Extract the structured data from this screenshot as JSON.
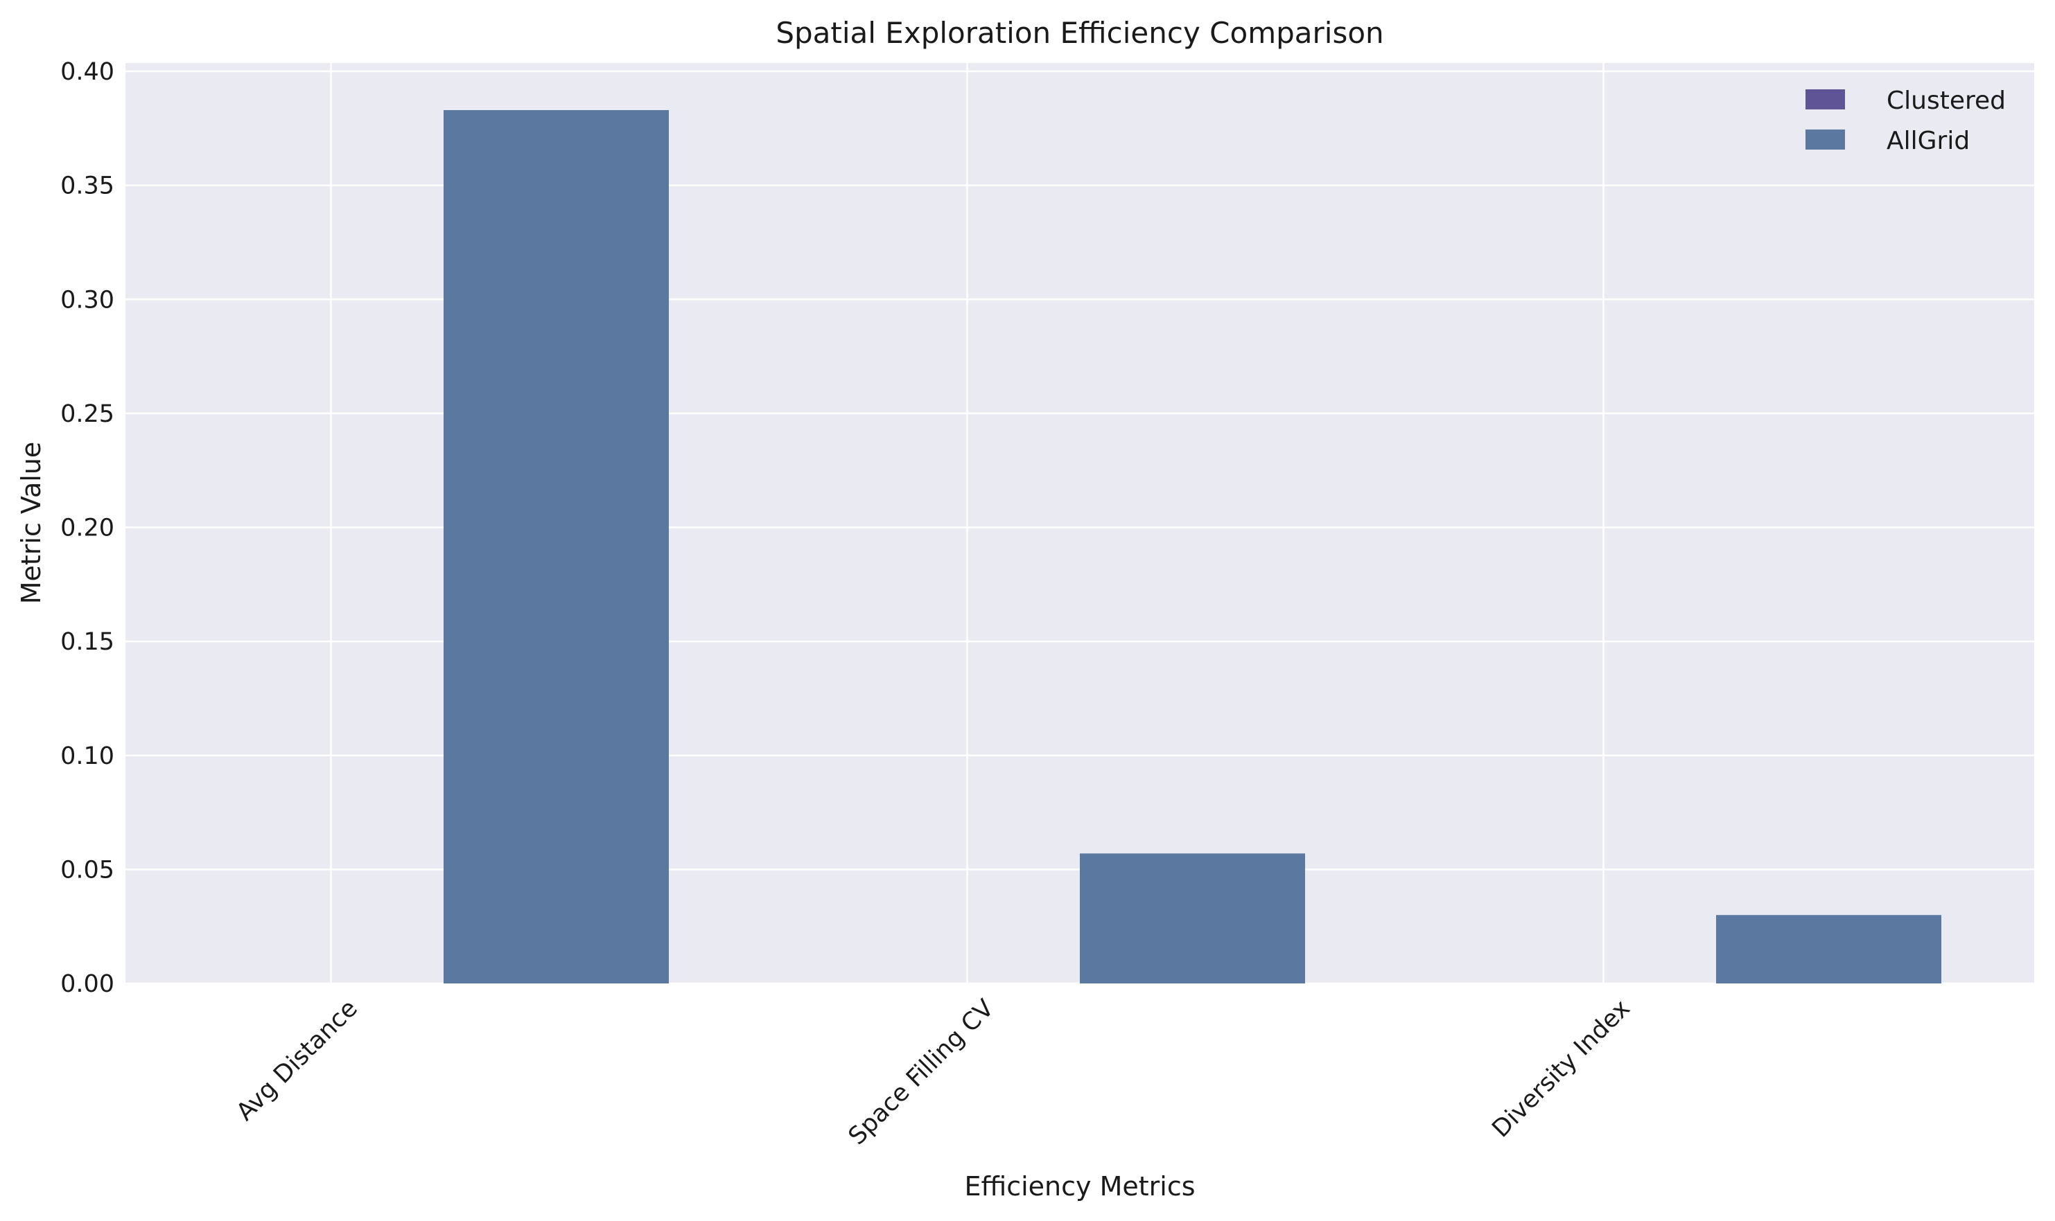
{
  "chart_data": {
    "type": "bar",
    "title": "Spatial Exploration Efficiency Comparison",
    "xlabel": "Efficiency Metrics",
    "ylabel": "Metric Value",
    "categories": [
      "Avg Distance",
      "Space Filling CV",
      "Diversity Index"
    ],
    "series": [
      {
        "name": "Clustered",
        "values": [
          0,
          0,
          0
        ],
        "color": "#5f5596"
      },
      {
        "name": "AllGrid",
        "values": [
          0.383,
          0.057,
          0.03
        ],
        "color": "#5a78a0"
      }
    ],
    "ylim": [
      0,
      0.4
    ],
    "yticks": [
      0.0,
      0.05,
      0.1,
      0.15,
      0.2,
      0.25,
      0.3,
      0.35,
      0.4
    ],
    "ytick_labels": [
      "0.00",
      "0.05",
      "0.10",
      "0.15",
      "0.20",
      "0.25",
      "0.30",
      "0.35",
      "0.40"
    ],
    "grid": true,
    "legend_position": "top-right",
    "colors": {
      "plot_background": "#eaeaf2",
      "grid": "#ffffff"
    }
  }
}
